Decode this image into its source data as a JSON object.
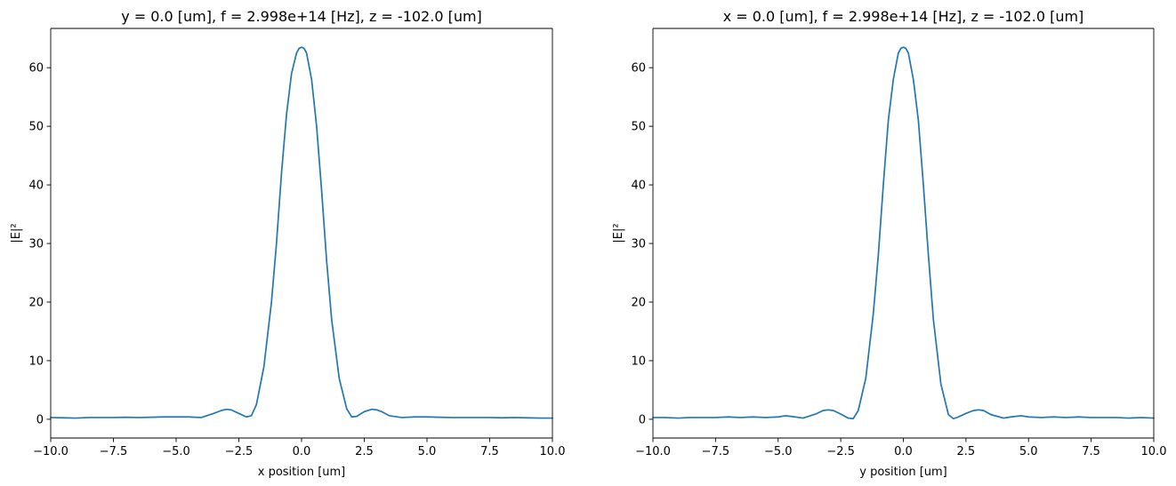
{
  "chart_data": [
    {
      "type": "line",
      "title": "y = 0.0 [um], f = 2.998e+14 [Hz], z = -102.0 [um]",
      "xlabel": "x position [um]",
      "ylabel": "|E|²",
      "xlim": [
        -10,
        10
      ],
      "ylim": [
        -3.2,
        66.7
      ],
      "xticks": [
        -10,
        -7.5,
        -5,
        -2.5,
        0,
        2.5,
        5,
        7.5,
        10
      ],
      "xtick_labels": [
        "−10.0",
        "−7.5",
        "−5.0",
        "−2.5",
        "0.0",
        "2.5",
        "5.0",
        "7.5",
        "10.0"
      ],
      "yticks": [
        0,
        10,
        20,
        30,
        40,
        50,
        60
      ],
      "ytick_labels": [
        "0",
        "10",
        "20",
        "30",
        "40",
        "50",
        "60"
      ],
      "grid": false,
      "series_color": "#1f77b4",
      "series": [
        {
          "x": [
            -10,
            -9.5,
            -9,
            -8.5,
            -8,
            -7.5,
            -7,
            -6.5,
            -6,
            -5.5,
            -5,
            -4.5,
            -4,
            -3.5,
            -3.2,
            -3,
            -2.8,
            -2.5,
            -2.2,
            -2,
            -1.8,
            -1.5,
            -1.2,
            -1,
            -0.8,
            -0.6,
            -0.4,
            -0.2,
            -0.1,
            0,
            0.1,
            0.2,
            0.4,
            0.6,
            0.8,
            1,
            1.2,
            1.5,
            1.8,
            2,
            2.2,
            2.5,
            2.8,
            3,
            3.2,
            3.5,
            4,
            4.5,
            5,
            5.5,
            6,
            6.5,
            7,
            7.5,
            8,
            8.5,
            9,
            9.5,
            10
          ],
          "y": [
            0.3,
            0.25,
            0.2,
            0.3,
            0.3,
            0.3,
            0.35,
            0.3,
            0.35,
            0.4,
            0.4,
            0.4,
            0.3,
            1.0,
            1.5,
            1.7,
            1.6,
            1.0,
            0.4,
            0.6,
            2.5,
            9.0,
            20.0,
            30.0,
            42.0,
            52.0,
            59.0,
            62.5,
            63.3,
            63.5,
            63.3,
            62.5,
            58.0,
            50.0,
            39.0,
            27.0,
            17.0,
            7.0,
            1.8,
            0.4,
            0.5,
            1.3,
            1.7,
            1.6,
            1.3,
            0.6,
            0.3,
            0.4,
            0.4,
            0.35,
            0.3,
            0.3,
            0.3,
            0.3,
            0.25,
            0.3,
            0.25,
            0.2,
            0.2
          ]
        }
      ]
    },
    {
      "type": "line",
      "title": "x = 0.0 [um], f = 2.998e+14 [Hz], z = -102.0 [um]",
      "xlabel": "y position [um]",
      "ylabel": "|E|²",
      "xlim": [
        -10,
        10
      ],
      "ylim": [
        -3.2,
        66.7
      ],
      "xticks": [
        -10,
        -7.5,
        -5,
        -2.5,
        0,
        2.5,
        5,
        7.5,
        10
      ],
      "xtick_labels": [
        "−10.0",
        "−7.5",
        "−5.0",
        "−2.5",
        "0.0",
        "2.5",
        "5.0",
        "7.5",
        "10.0"
      ],
      "yticks": [
        0,
        10,
        20,
        30,
        40,
        50,
        60
      ],
      "ytick_labels": [
        "0",
        "10",
        "20",
        "30",
        "40",
        "50",
        "60"
      ],
      "grid": false,
      "series_color": "#1f77b4",
      "series": [
        {
          "x": [
            -10,
            -9.5,
            -9,
            -8.5,
            -8,
            -7.5,
            -7,
            -6.5,
            -6,
            -5.5,
            -5,
            -4.7,
            -4.5,
            -4,
            -3.5,
            -3.2,
            -3,
            -2.8,
            -2.5,
            -2.2,
            -2,
            -1.8,
            -1.5,
            -1.2,
            -1,
            -0.8,
            -0.6,
            -0.4,
            -0.2,
            -0.1,
            0,
            0.1,
            0.2,
            0.4,
            0.6,
            0.8,
            1,
            1.2,
            1.5,
            1.8,
            2,
            2.2,
            2.5,
            2.8,
            3,
            3.2,
            3.5,
            4,
            4.3,
            4.7,
            5,
            5.5,
            6,
            6.5,
            7,
            7.5,
            8,
            8.5,
            9,
            9.5,
            10
          ],
          "y": [
            0.3,
            0.3,
            0.2,
            0.3,
            0.3,
            0.3,
            0.4,
            0.3,
            0.4,
            0.3,
            0.4,
            0.6,
            0.5,
            0.2,
            0.9,
            1.5,
            1.6,
            1.5,
            0.9,
            0.2,
            0.1,
            1.5,
            7.0,
            18.0,
            28.0,
            40.0,
            51.0,
            58.0,
            62.5,
            63.3,
            63.5,
            63.3,
            62.5,
            58.0,
            51.0,
            40.0,
            28.0,
            17.0,
            6.0,
            0.8,
            0.1,
            0.4,
            1.0,
            1.5,
            1.6,
            1.5,
            0.8,
            0.2,
            0.4,
            0.6,
            0.4,
            0.3,
            0.4,
            0.3,
            0.4,
            0.3,
            0.3,
            0.3,
            0.2,
            0.3,
            0.2
          ]
        }
      ]
    }
  ]
}
